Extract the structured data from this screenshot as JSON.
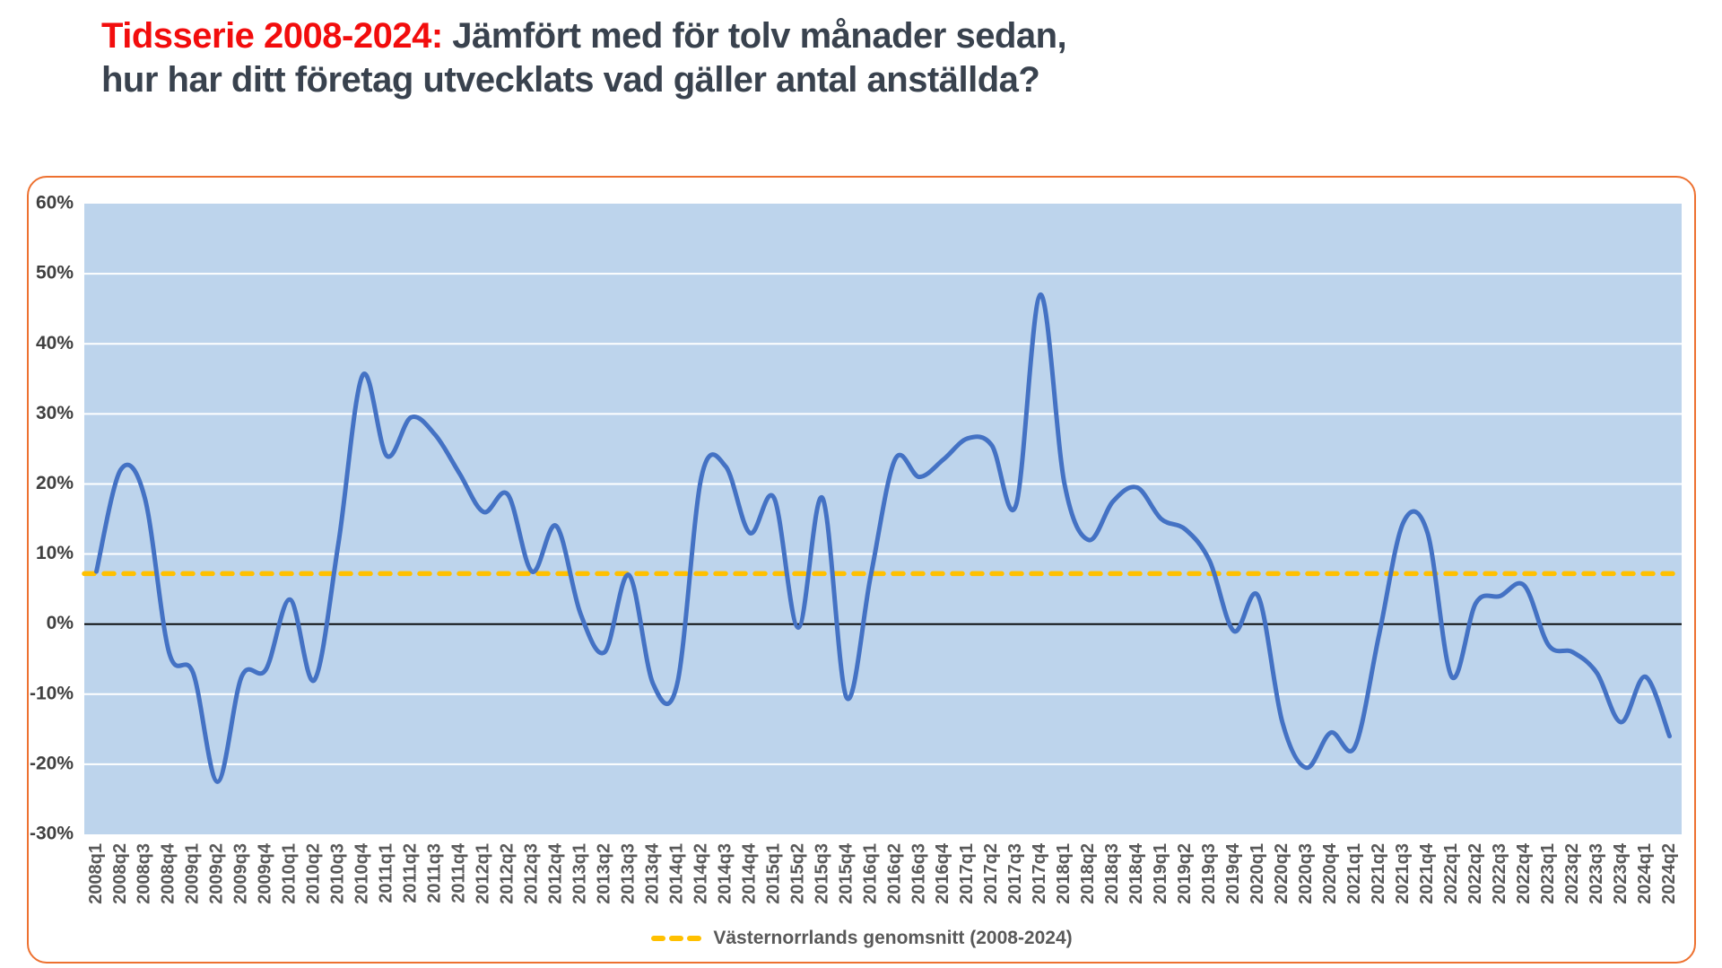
{
  "title": {
    "highlight": "Tidsserie 2008-2024:",
    "rest_line1": " Jämfört med för tolv månader sedan,",
    "line2": "hur har ditt företag utvecklats vad gäller antal anställda?"
  },
  "legend": {
    "label": "Västernorrlands genomsnitt (2008-2024)"
  },
  "colors": {
    "series_line": "#4472C4",
    "average_line": "#FFC000",
    "plot_background": "#BDD4EC",
    "gridline": "#FFFFFF",
    "zero_line": "#000000",
    "card_border": "#ED7130",
    "title_highlight": "#F20D0D",
    "title_text": "#39424E",
    "axis_label": "#404040",
    "category_label": "#595959"
  },
  "chart_data": {
    "type": "line",
    "smoothed": true,
    "grid": "horizontal",
    "legend_position": "bottom",
    "ylim": [
      -30,
      60
    ],
    "ytick_step": 10,
    "ytick_labels": [
      "60%",
      "50%",
      "40%",
      "30%",
      "20%",
      "10%",
      "0%",
      "-10%",
      "-20%",
      "-30%"
    ],
    "categories": [
      "2008q1",
      "2008q2",
      "2008q3",
      "2008q4",
      "2009q1",
      "2009q2",
      "2009q3",
      "2009q4",
      "2010q1",
      "2010q2",
      "2010q3",
      "2010q4",
      "2011q1",
      "2011q2",
      "2011q3",
      "2011q4",
      "2012q1",
      "2012q2",
      "2012q3",
      "2012q4",
      "2013q1",
      "2013q2",
      "2013q3",
      "2013q4",
      "2014q1",
      "2014q2",
      "2014q3",
      "2014q4",
      "2015q1",
      "2015q2",
      "2015q3",
      "2015q4",
      "2016q1",
      "2016q2",
      "2016q3",
      "2016q4",
      "2017q1",
      "2017q2",
      "2017q3",
      "2017q4",
      "2018q1",
      "2018q2",
      "2018q3",
      "2018q4",
      "2019q1",
      "2019q2",
      "2019q3",
      "2019q4",
      "2020q1",
      "2020q2",
      "2020q3",
      "2020q4",
      "2021q1",
      "2021q2",
      "2021q3",
      "2021q4",
      "2022q1",
      "2022q2",
      "2022q3",
      "2022q4",
      "2023q1",
      "2023q2",
      "2023q3",
      "2023q4",
      "2024q1",
      "2024q2"
    ],
    "series": [
      {
        "values": [
          7.5,
          22,
          18,
          -4,
          -7,
          -22.5,
          -7.5,
          -6.5,
          3.5,
          -8,
          11.5,
          35.5,
          24,
          29.5,
          27,
          21.5,
          16,
          18.5,
          7.5,
          14,
          1.5,
          -4,
          7,
          -8.5,
          -8.5,
          21,
          22.5,
          13,
          18,
          -0.5,
          18,
          -10.5,
          7,
          23.5,
          21,
          23.5,
          26.5,
          25.5,
          17,
          47,
          20,
          12,
          17.5,
          19.5,
          15,
          13.5,
          9,
          -1,
          4,
          -14,
          -20.5,
          -15.5,
          -17.5,
          -1.5,
          14.5,
          13,
          -7.5,
          3,
          4,
          5.5,
          -3,
          -4,
          -7,
          -14,
          -7.5,
          -16
        ]
      }
    ],
    "average_line": {
      "label": "Västernorrlands genomsnitt (2008-2024)",
      "value": 7.2
    }
  }
}
